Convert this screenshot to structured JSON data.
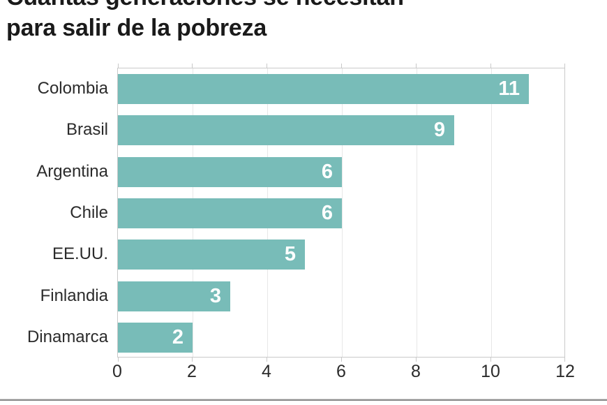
{
  "title": {
    "line1": "Cuántas generaciones se necesitan",
    "line2": "para salir de la pobreza"
  },
  "chart_data": {
    "type": "bar",
    "orientation": "horizontal",
    "title": "Cuántas generaciones se necesitan para salir de la pobreza",
    "categories": [
      "Colombia",
      "Brasil",
      "Argentina",
      "Chile",
      "EE.UU.",
      "Finlandia",
      "Dinamarca"
    ],
    "values": [
      11,
      9,
      6,
      6,
      5,
      3,
      2
    ],
    "xlabel": "",
    "ylabel": "",
    "xlim": [
      0,
      12
    ],
    "x_ticks": [
      0,
      2,
      4,
      6,
      8,
      10,
      12
    ],
    "grid": true,
    "legend": false,
    "bar_color": "#78bcb8",
    "value_label_color": "#ffffff",
    "grid_color": "#e7e7e7",
    "axis_color": "#c9c9c9"
  }
}
